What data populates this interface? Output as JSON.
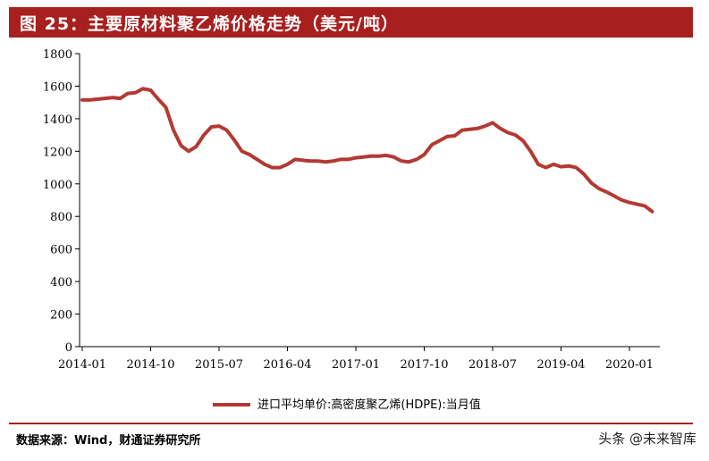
{
  "header": {
    "title": "图 25：主要原材料聚乙烯价格走势（美元/吨）"
  },
  "footer": {
    "source": "数据来源：Wind，财通证券研究所",
    "watermark": "头条 @未来智库"
  },
  "colors": {
    "brand": "#a71f1e",
    "series": "#b23a33",
    "axis": "#000000"
  },
  "chart_data": {
    "type": "line",
    "title": "",
    "xlabel": "",
    "ylabel": "",
    "ylim": [
      0,
      1800
    ],
    "yticks": [
      "0",
      "200",
      "400",
      "600",
      "800",
      "1000",
      "1200",
      "1400",
      "1600",
      "1800"
    ],
    "xticks": [
      "2014-01",
      "2014-10",
      "2015-07",
      "2016-04",
      "2017-01",
      "2017-10",
      "2018-07",
      "2019-04",
      "2020-01"
    ],
    "grid": false,
    "legend_position": "bottom",
    "series": [
      {
        "name": "进口平均单价:高密度聚乙烯(HDPE):当月值",
        "x": [
          "2014-01",
          "2014-02",
          "2014-03",
          "2014-04",
          "2014-05",
          "2014-06",
          "2014-07",
          "2014-08",
          "2014-09",
          "2014-10",
          "2014-11",
          "2014-12",
          "2015-01",
          "2015-02",
          "2015-03",
          "2015-04",
          "2015-05",
          "2015-06",
          "2015-07",
          "2015-08",
          "2015-09",
          "2015-10",
          "2015-11",
          "2015-12",
          "2016-01",
          "2016-02",
          "2016-03",
          "2016-04",
          "2016-05",
          "2016-06",
          "2016-07",
          "2016-08",
          "2016-09",
          "2016-10",
          "2016-11",
          "2016-12",
          "2017-01",
          "2017-02",
          "2017-03",
          "2017-04",
          "2017-05",
          "2017-06",
          "2017-07",
          "2017-08",
          "2017-09",
          "2017-10",
          "2017-11",
          "2017-12",
          "2018-01",
          "2018-02",
          "2018-03",
          "2018-04",
          "2018-05",
          "2018-06",
          "2018-07",
          "2018-08",
          "2018-09",
          "2018-10",
          "2018-11",
          "2018-12",
          "2019-01",
          "2019-02",
          "2019-03",
          "2019-04",
          "2019-05",
          "2019-06",
          "2019-07",
          "2019-08",
          "2019-09",
          "2019-10",
          "2019-11",
          "2019-12",
          "2020-01",
          "2020-02",
          "2020-03",
          "2020-04"
        ],
        "values": [
          1515,
          1515,
          1520,
          1525,
          1530,
          1525,
          1555,
          1560,
          1585,
          1575,
          1520,
          1470,
          1330,
          1235,
          1200,
          1230,
          1300,
          1350,
          1355,
          1330,
          1270,
          1200,
          1180,
          1150,
          1120,
          1100,
          1100,
          1120,
          1150,
          1145,
          1140,
          1140,
          1135,
          1140,
          1150,
          1150,
          1160,
          1165,
          1170,
          1170,
          1175,
          1165,
          1140,
          1135,
          1150,
          1180,
          1240,
          1265,
          1290,
          1295,
          1330,
          1335,
          1340,
          1355,
          1375,
          1340,
          1315,
          1300,
          1265,
          1200,
          1120,
          1100,
          1120,
          1105,
          1110,
          1100,
          1060,
          1005,
          970,
          950,
          925,
          900,
          885,
          875,
          865,
          830
        ]
      }
    ]
  }
}
